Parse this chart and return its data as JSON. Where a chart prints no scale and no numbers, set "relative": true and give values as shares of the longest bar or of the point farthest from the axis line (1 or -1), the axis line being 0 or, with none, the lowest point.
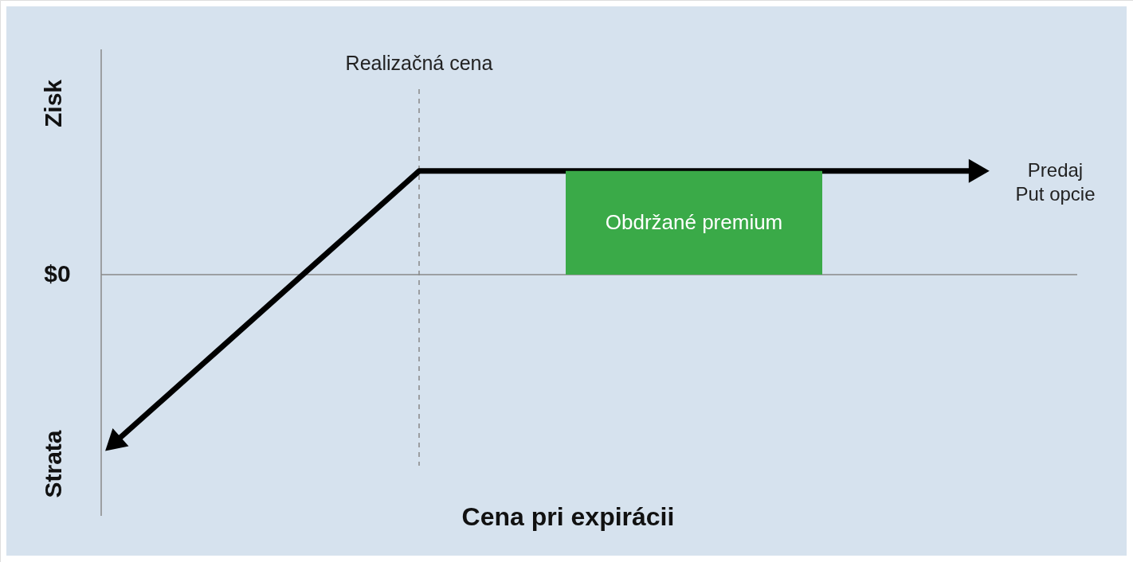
{
  "chart_data": {
    "type": "line",
    "relative": true,
    "xlabel": "Cena pri expirácii",
    "categories": [
      null,
      null,
      null,
      null,
      null,
      null,
      null,
      null,
      null,
      null,
      null,
      null,
      null,
      null,
      null,
      null,
      null,
      null
    ],
    "series": [
      {
        "name": "Predaj Put opcie",
        "color": "#000000",
        "values": [
          -1,
          -0.73,
          -0.46,
          -0.19,
          0.08,
          0.35,
          0.62,
          0.62,
          0.62,
          0.62,
          0.62,
          0.62,
          0.62,
          0.62,
          0.62,
          0.62,
          0.62,
          0.62
        ]
      }
    ],
    "ref_lines": [
      {
        "axis": "x",
        "label": "Realizačná cena",
        "color": "#888888",
        "line_style": "dashed"
      }
    ],
    "bands": [
      {
        "axis": "y",
        "from": 0,
        "to": 0.62,
        "label": "Obdržané premium",
        "color": "#3aaa48"
      }
    ],
    "annotations": [
      "Zisk",
      "Strata",
      "$0"
    ]
  }
}
